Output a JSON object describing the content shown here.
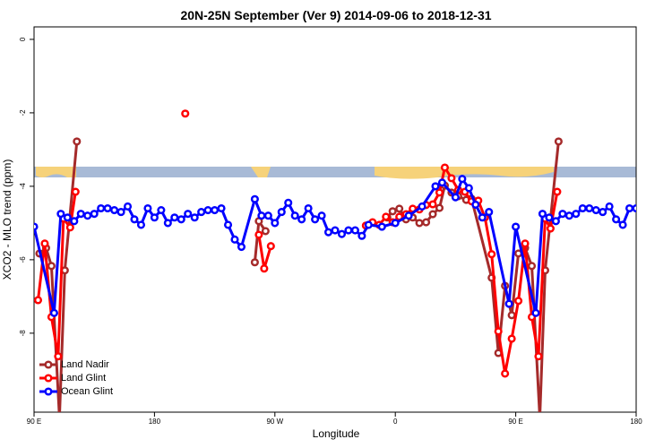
{
  "chart_data": {
    "type": "line",
    "title": "20N-25N September (Ver 9)   2014-09-06 to 2018-12-31",
    "xlabel": "Longitude",
    "ylabel": "XCO2 - MLO trend (ppm)",
    "xlim": [
      90,
      540
    ],
    "xticks": [
      {
        "value": 90,
        "label": "90 E"
      },
      180,
      {
        "value": 270,
        "label": "90 W"
      },
      {
        "value": 360,
        "label": "0"
      },
      {
        "value": 450,
        "label": "90 E"
      },
      {
        "value": 540,
        "label": "180"
      }
    ],
    "ylim": [
      -10.15,
      0.34
    ],
    "yticks": [
      0,
      -2,
      -4,
      -6,
      -8
    ],
    "legend": "bottom-left",
    "series": [
      {
        "name": "Land Nadir",
        "color": "#a52a2a",
        "x": [
          94,
          99,
          103,
          109,
          113,
          122,
          200,
          255,
          258,
          263,
          300,
          354,
          358,
          363,
          368,
          373,
          378,
          383,
          388,
          393,
          397,
          402,
          407,
          413,
          417,
          432,
          437,
          442,
          447,
          452,
          457,
          462,
          468,
          472,
          482
        ],
        "values": [
          -5.83,
          -5.68,
          -6.17,
          -10.3,
          -6.29,
          -2.78,
          null,
          -6.07,
          -4.95,
          -5.22,
          null,
          -4.85,
          -4.68,
          -4.61,
          -4.9,
          -4.85,
          -5.0,
          -4.98,
          -4.76,
          -4.59,
          -3.98,
          -4.17,
          -4.27,
          -4.37,
          -4.34,
          -6.49,
          -8.54,
          -6.71,
          -7.51,
          -5.83,
          -5.68,
          -6.17,
          -10.3,
          -6.29,
          -2.78
        ]
      },
      {
        "name": "Land Glint",
        "color": "#ff0000",
        "x": [
          93,
          98,
          103,
          108,
          112,
          117,
          121,
          160,
          203,
          230,
          258,
          262,
          267,
          300,
          338,
          343,
          348,
          353,
          358,
          363,
          368,
          373,
          378,
          383,
          388,
          393,
          397,
          402,
          407,
          412,
          417,
          422,
          427,
          432,
          437,
          442,
          447,
          452,
          457,
          462,
          467,
          472,
          476,
          481
        ],
        "values": [
          -7.1,
          -5.56,
          -7.56,
          -8.63,
          -4.88,
          -5.12,
          -4.15,
          null,
          -2.02,
          null,
          -5.32,
          -6.24,
          -5.63,
          null,
          -5.07,
          -4.98,
          -5.05,
          -4.83,
          -4.98,
          -4.83,
          -4.76,
          -4.61,
          -4.63,
          -4.51,
          -4.49,
          -4.17,
          -3.49,
          -3.78,
          -4.1,
          -4.15,
          -4.41,
          -4.39,
          -4.85,
          -5.85,
          -7.95,
          -9.1,
          -8.15,
          -7.12,
          -5.56,
          -7.56,
          -8.63,
          -4.88,
          -5.15,
          -4.15
        ]
      },
      {
        "name": "Ocean Glint",
        "color": "#0000ff",
        "x": [
          90,
          105,
          110,
          115,
          120,
          125,
          130,
          135,
          140,
          145,
          150,
          155,
          160,
          165,
          170,
          175,
          180,
          185,
          190,
          195,
          200,
          205,
          210,
          215,
          220,
          225,
          230,
          235,
          240,
          245,
          255,
          260,
          265,
          270,
          275,
          280,
          285,
          290,
          295,
          300,
          305,
          310,
          315,
          320,
          325,
          330,
          335,
          340,
          350,
          360,
          370,
          380,
          390,
          395,
          405,
          410,
          415,
          420,
          425,
          430,
          445,
          450,
          465,
          470,
          475,
          480,
          485,
          490,
          495,
          500,
          505,
          510,
          515,
          520,
          525,
          530,
          535,
          540
        ],
        "values": [
          -5.1,
          -7.45,
          -4.75,
          -4.85,
          -4.95,
          -4.75,
          -4.8,
          -4.75,
          -4.6,
          -4.6,
          -4.65,
          -4.7,
          -4.55,
          -4.9,
          -5.05,
          -4.6,
          -4.85,
          -4.65,
          -5.0,
          -4.85,
          -4.9,
          -4.75,
          -4.85,
          -4.7,
          -4.65,
          -4.65,
          -4.6,
          -5.05,
          -5.45,
          -5.65,
          -4.35,
          -4.8,
          -4.8,
          -5.0,
          -4.7,
          -4.45,
          -4.8,
          -4.9,
          -4.6,
          -4.9,
          -4.8,
          -5.25,
          -5.2,
          -5.3,
          -5.2,
          -5.2,
          -5.35,
          -5.05,
          -5.1,
          -5.0,
          -4.8,
          -4.55,
          -4.0,
          -3.9,
          -4.3,
          -3.8,
          -4.05,
          -4.5,
          -4.85,
          -4.7,
          -7.2,
          -5.1,
          -7.45,
          -4.75,
          -4.85,
          -4.95,
          -4.75,
          -4.8,
          -4.75,
          -4.6,
          -4.6,
          -4.65,
          -4.7,
          -4.55,
          -4.9,
          -5.05,
          -4.6,
          -4.6
        ]
      }
    ]
  }
}
